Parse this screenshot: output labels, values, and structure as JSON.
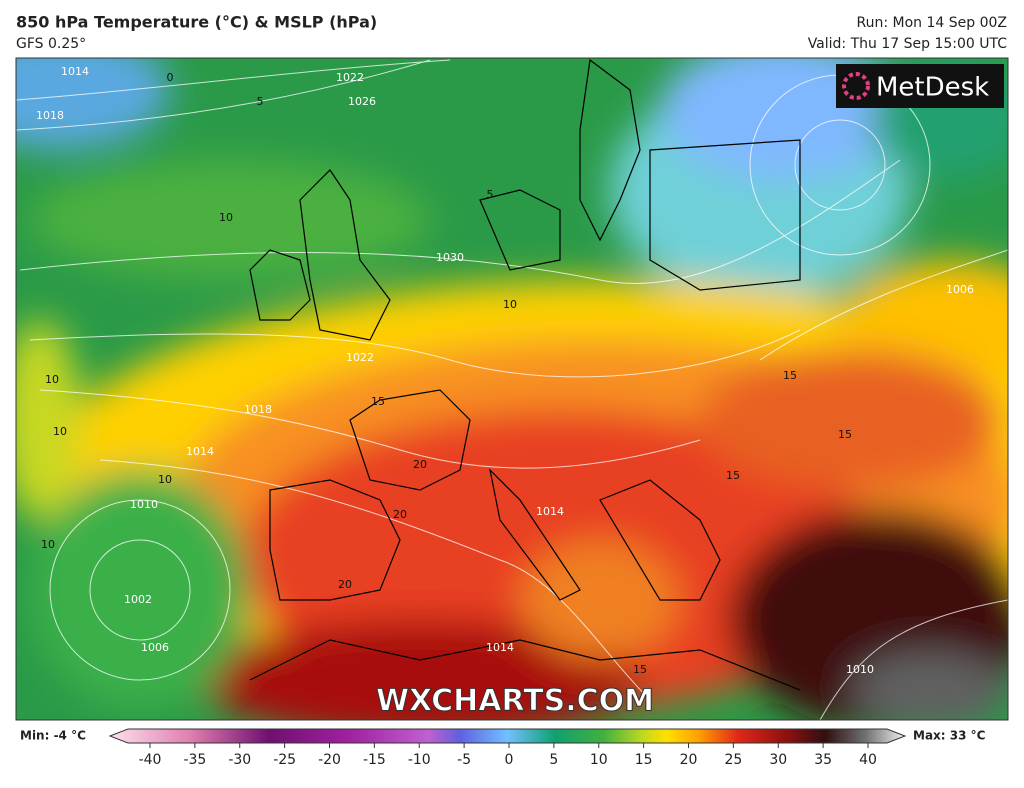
{
  "header": {
    "title": "850 hPa Temperature (°C) & MSLP (hPa)",
    "model": "GFS 0.25°",
    "run": "Run: Mon 14 Sep 00Z",
    "valid": "Valid: Thu 17 Sep 15:00 UTC"
  },
  "brand": "MetDesk",
  "watermark": "WXCHARTS.COM",
  "map_labels": [
    "1014",
    "1018",
    "1022",
    "1026",
    "1030",
    "1018",
    "1014",
    "1010",
    "1002",
    "1006",
    "1022",
    "1014",
    "1014",
    "1006",
    "1010",
    "10",
    "10",
    "10",
    "10",
    "10",
    "10",
    "15",
    "15",
    "15",
    "15",
    "15",
    "20",
    "20",
    "20",
    "5",
    "5",
    "0"
  ],
  "colorbar": {
    "min_label": "Min: -4 °C",
    "max_label": "Max: 33 °C",
    "ticks": [
      -40,
      -35,
      -30,
      -25,
      -20,
      -15,
      -10,
      -5,
      0,
      5,
      10,
      15,
      20,
      25,
      30,
      35,
      40
    ]
  }
}
